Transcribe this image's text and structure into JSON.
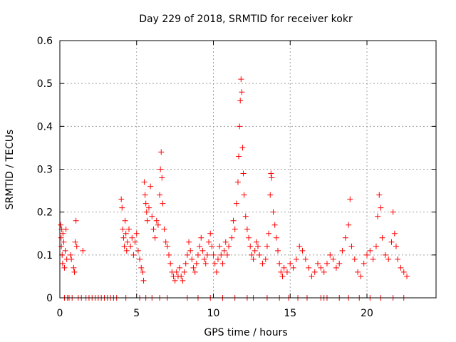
{
  "chart_data": {
    "type": "scatter",
    "title": "Day 229 of 2018, SRMTID for receiver kokr",
    "xlabel": "GPS time / hours",
    "ylabel": "SRMTID / TECUs",
    "xlim": [
      0,
      24.5
    ],
    "ylim": [
      0,
      0.6
    ],
    "x_ticks": [
      0,
      5,
      10,
      15,
      20
    ],
    "x_tick_labels": [
      "0",
      "5",
      "10",
      "15",
      "20"
    ],
    "y_ticks": [
      0,
      0.1,
      0.2,
      0.3,
      0.4,
      0.5,
      0.6
    ],
    "y_tick_labels": [
      "0",
      "0.1",
      "0.2",
      "0.3",
      "0.4",
      "0.5",
      "0.6"
    ],
    "grid": true,
    "marker": "+",
    "series": [
      {
        "name": "SRMTID",
        "color": "#ff0000",
        "points": [
          [
            0.05,
            0.17
          ],
          [
            0.08,
            0.14
          ],
          [
            0.1,
            0.12
          ],
          [
            0.12,
            0.16
          ],
          [
            0.15,
            0.1
          ],
          [
            0.18,
            0.08
          ],
          [
            0.2,
            0.15
          ],
          [
            0.25,
            0.13
          ],
          [
            0.3,
            0.07
          ],
          [
            0.35,
            0.11
          ],
          [
            0.4,
            0.16
          ],
          [
            0.45,
            0.09
          ],
          [
            0.7,
            0.1
          ],
          [
            0.75,
            0.09
          ],
          [
            0.9,
            0.07
          ],
          [
            0.95,
            0.06
          ],
          [
            1.0,
            0.13
          ],
          [
            1.05,
            0.18
          ],
          [
            1.1,
            0.12
          ],
          [
            1.5,
            0.11
          ],
          [
            4.0,
            0.23
          ],
          [
            4.05,
            0.21
          ],
          [
            4.1,
            0.16
          ],
          [
            4.15,
            0.14
          ],
          [
            4.2,
            0.12
          ],
          [
            4.25,
            0.18
          ],
          [
            4.3,
            0.15
          ],
          [
            4.35,
            0.11
          ],
          [
            4.4,
            0.13
          ],
          [
            4.5,
            0.16
          ],
          [
            4.6,
            0.12
          ],
          [
            4.7,
            0.14
          ],
          [
            4.8,
            0.1
          ],
          [
            4.9,
            0.13
          ],
          [
            5.0,
            0.15
          ],
          [
            5.1,
            0.11
          ],
          [
            5.2,
            0.09
          ],
          [
            5.3,
            0.07
          ],
          [
            5.4,
            0.06
          ],
          [
            5.45,
            0.04
          ],
          [
            5.5,
            0.27
          ],
          [
            5.55,
            0.24
          ],
          [
            5.6,
            0.22
          ],
          [
            5.65,
            0.2
          ],
          [
            5.7,
            0.18
          ],
          [
            5.8,
            0.21
          ],
          [
            5.9,
            0.26
          ],
          [
            6.0,
            0.19
          ],
          [
            6.1,
            0.16
          ],
          [
            6.2,
            0.14
          ],
          [
            6.3,
            0.18
          ],
          [
            6.4,
            0.17
          ],
          [
            6.5,
            0.24
          ],
          [
            6.55,
            0.3
          ],
          [
            6.6,
            0.34
          ],
          [
            6.65,
            0.28
          ],
          [
            6.7,
            0.22
          ],
          [
            6.8,
            0.16
          ],
          [
            6.9,
            0.13
          ],
          [
            7.0,
            0.12
          ],
          [
            7.1,
            0.1
          ],
          [
            7.2,
            0.08
          ],
          [
            7.3,
            0.06
          ],
          [
            7.4,
            0.05
          ],
          [
            7.5,
            0.04
          ],
          [
            7.6,
            0.06
          ],
          [
            7.7,
            0.05
          ],
          [
            7.8,
            0.07
          ],
          [
            7.9,
            0.05
          ],
          [
            8.0,
            0.04
          ],
          [
            8.1,
            0.06
          ],
          [
            8.2,
            0.08
          ],
          [
            8.3,
            0.1
          ],
          [
            8.4,
            0.13
          ],
          [
            8.5,
            0.11
          ],
          [
            8.6,
            0.09
          ],
          [
            8.7,
            0.07
          ],
          [
            8.8,
            0.06
          ],
          [
            8.9,
            0.08
          ],
          [
            9.0,
            0.1
          ],
          [
            9.1,
            0.12
          ],
          [
            9.2,
            0.14
          ],
          [
            9.3,
            0.11
          ],
          [
            9.4,
            0.09
          ],
          [
            9.5,
            0.08
          ],
          [
            9.6,
            0.1
          ],
          [
            9.7,
            0.13
          ],
          [
            9.8,
            0.15
          ],
          [
            9.9,
            0.12
          ],
          [
            10.0,
            0.1
          ],
          [
            10.1,
            0.08
          ],
          [
            10.2,
            0.06
          ],
          [
            10.3,
            0.09
          ],
          [
            10.4,
            0.12
          ],
          [
            10.5,
            0.1
          ],
          [
            10.6,
            0.08
          ],
          [
            10.7,
            0.11
          ],
          [
            10.8,
            0.13
          ],
          [
            10.9,
            0.1
          ],
          [
            11.0,
            0.12
          ],
          [
            11.2,
            0.14
          ],
          [
            11.3,
            0.18
          ],
          [
            11.4,
            0.16
          ],
          [
            11.5,
            0.22
          ],
          [
            11.6,
            0.27
          ],
          [
            11.65,
            0.33
          ],
          [
            11.7,
            0.4
          ],
          [
            11.75,
            0.46
          ],
          [
            11.8,
            0.51
          ],
          [
            11.85,
            0.48
          ],
          [
            11.9,
            0.35
          ],
          [
            11.95,
            0.29
          ],
          [
            12.0,
            0.24
          ],
          [
            12.1,
            0.19
          ],
          [
            12.2,
            0.16
          ],
          [
            12.3,
            0.14
          ],
          [
            12.4,
            0.12
          ],
          [
            12.5,
            0.1
          ],
          [
            12.6,
            0.09
          ],
          [
            12.7,
            0.11
          ],
          [
            12.8,
            0.13
          ],
          [
            12.9,
            0.12
          ],
          [
            13.0,
            0.1
          ],
          [
            13.2,
            0.08
          ],
          [
            13.4,
            0.09
          ],
          [
            13.5,
            0.12
          ],
          [
            13.6,
            0.15
          ],
          [
            13.7,
            0.24
          ],
          [
            13.75,
            0.29
          ],
          [
            13.8,
            0.28
          ],
          [
            13.9,
            0.2
          ],
          [
            14.0,
            0.17
          ],
          [
            14.1,
            0.14
          ],
          [
            14.2,
            0.11
          ],
          [
            14.3,
            0.08
          ],
          [
            14.4,
            0.06
          ],
          [
            14.5,
            0.05
          ],
          [
            14.6,
            0.07
          ],
          [
            14.8,
            0.06
          ],
          [
            15.0,
            0.08
          ],
          [
            15.2,
            0.07
          ],
          [
            15.4,
            0.09
          ],
          [
            15.6,
            0.12
          ],
          [
            15.8,
            0.11
          ],
          [
            16.0,
            0.09
          ],
          [
            16.2,
            0.07
          ],
          [
            16.4,
            0.05
          ],
          [
            16.6,
            0.06
          ],
          [
            16.8,
            0.08
          ],
          [
            17.0,
            0.07
          ],
          [
            17.2,
            0.06
          ],
          [
            17.4,
            0.08
          ],
          [
            17.6,
            0.1
          ],
          [
            17.8,
            0.09
          ],
          [
            18.0,
            0.07
          ],
          [
            18.2,
            0.08
          ],
          [
            18.4,
            0.11
          ],
          [
            18.6,
            0.14
          ],
          [
            18.8,
            0.17
          ],
          [
            18.9,
            0.23
          ],
          [
            19.0,
            0.12
          ],
          [
            19.2,
            0.09
          ],
          [
            19.4,
            0.06
          ],
          [
            19.6,
            0.05
          ],
          [
            19.8,
            0.08
          ],
          [
            20.0,
            0.1
          ],
          [
            20.2,
            0.11
          ],
          [
            20.4,
            0.09
          ],
          [
            20.6,
            0.12
          ],
          [
            20.7,
            0.19
          ],
          [
            20.8,
            0.24
          ],
          [
            20.9,
            0.21
          ],
          [
            21.0,
            0.14
          ],
          [
            21.2,
            0.1
          ],
          [
            21.4,
            0.09
          ],
          [
            21.6,
            0.13
          ],
          [
            21.7,
            0.2
          ],
          [
            21.8,
            0.15
          ],
          [
            21.9,
            0.12
          ],
          [
            22.0,
            0.09
          ],
          [
            22.2,
            0.07
          ],
          [
            22.4,
            0.06
          ],
          [
            22.6,
            0.05
          ]
        ]
      }
    ],
    "zero_points_x": [
      0.3,
      0.5,
      0.6,
      0.8,
      1.2,
      1.4,
      1.7,
      1.9,
      2.1,
      2.3,
      2.5,
      2.7,
      2.9,
      3.1,
      3.3,
      3.5,
      3.7,
      4.3,
      5.2,
      5.6,
      6.0,
      6.5,
      7.0,
      8.3,
      9.0,
      9.8,
      10.6,
      11.4,
      12.2,
      12.6,
      13.5,
      14.3,
      14.9,
      15.5,
      16.1,
      17.0,
      17.2,
      17.4,
      18.2,
      18.8,
      19.5,
      20.2,
      20.9,
      21.7,
      22.4
    ]
  }
}
